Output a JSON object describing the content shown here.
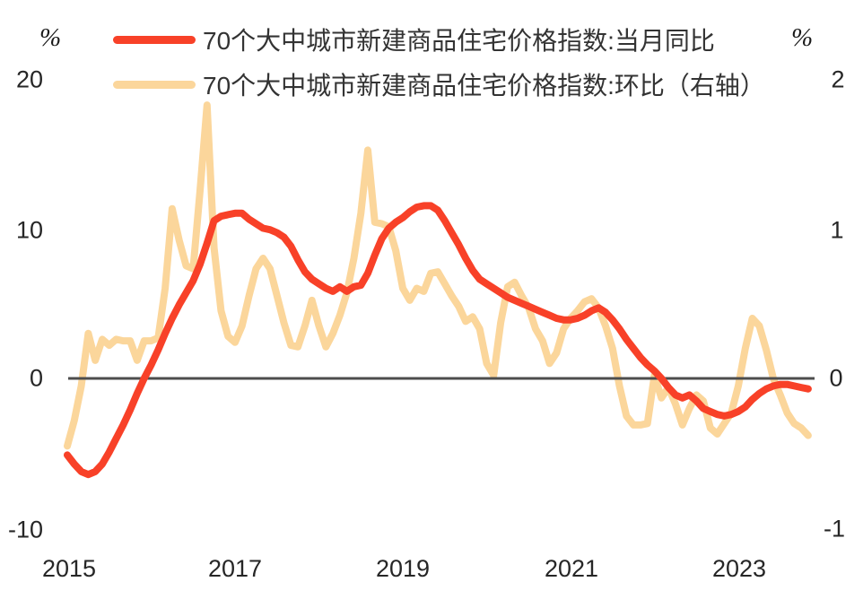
{
  "chart_data": {
    "type": "line",
    "title": "",
    "x_start": "2015-01",
    "x_end": "2023-11",
    "x_tick_labels": [
      "2015",
      "2017",
      "2019",
      "2021",
      "2023"
    ],
    "left_axis": {
      "unit": "%",
      "ticks": [
        "20",
        "10",
        "0",
        "-10"
      ],
      "range": [
        -10,
        20
      ]
    },
    "right_axis": {
      "unit": "%",
      "ticks": [
        "2",
        "1",
        "0",
        "-1"
      ],
      "range": [
        -1,
        2
      ]
    },
    "zero_line": true,
    "grid": "off",
    "legend_position": "top",
    "series": [
      {
        "name": "70个大中城市新建商品住宅价格指数:当月同比",
        "axis": "left",
        "color": "#F84128",
        "values": [
          -5.1,
          -5.7,
          -6.2,
          -6.4,
          -6.2,
          -5.7,
          -4.9,
          -4.0,
          -3.1,
          -2.1,
          -1.0,
          0.0,
          0.9,
          1.9,
          3.0,
          4.0,
          4.9,
          5.7,
          6.5,
          7.6,
          9.0,
          10.5,
          10.8,
          10.9,
          11.0,
          11.0,
          10.6,
          10.3,
          10.0,
          9.9,
          9.7,
          9.4,
          8.8,
          7.9,
          7.1,
          6.6,
          6.3,
          6.0,
          5.8,
          6.1,
          5.8,
          6.1,
          6.2,
          7.0,
          8.2,
          9.3,
          10.0,
          10.4,
          10.7,
          11.1,
          11.4,
          11.5,
          11.5,
          11.2,
          10.5,
          9.7,
          8.9,
          8.0,
          7.2,
          6.6,
          6.3,
          6.0,
          5.7,
          5.4,
          5.2,
          5.0,
          4.8,
          4.6,
          4.4,
          4.2,
          4.0,
          3.9,
          3.9,
          4.0,
          4.2,
          4.5,
          4.7,
          4.4,
          3.9,
          3.3,
          2.6,
          2.0,
          1.4,
          0.9,
          0.5,
          0.0,
          -0.6,
          -1.1,
          -1.3,
          -1.1,
          -1.5,
          -2.0,
          -2.2,
          -2.4,
          -2.5,
          -2.4,
          -2.2,
          -1.9,
          -1.4,
          -1.0,
          -0.7,
          -0.5,
          -0.4,
          -0.4,
          -0.5,
          -0.6,
          -0.7
        ]
      },
      {
        "name": "70个大中城市新建商品住宅价格指数:环比（右轴）",
        "axis": "right",
        "color": "#FBD69B",
        "values": [
          -0.45,
          -0.28,
          -0.05,
          0.3,
          0.12,
          0.26,
          0.22,
          0.26,
          0.25,
          0.25,
          0.12,
          0.25,
          0.25,
          0.27,
          0.6,
          1.13,
          0.92,
          0.75,
          0.73,
          1.25,
          1.82,
          0.87,
          0.45,
          0.28,
          0.24,
          0.35,
          0.55,
          0.73,
          0.8,
          0.73,
          0.55,
          0.37,
          0.22,
          0.21,
          0.35,
          0.52,
          0.35,
          0.21,
          0.3,
          0.42,
          0.57,
          0.8,
          1.1,
          1.52,
          1.04,
          1.03,
          1.01,
          0.85,
          0.6,
          0.52,
          0.6,
          0.58,
          0.7,
          0.71,
          0.63,
          0.55,
          0.48,
          0.38,
          0.41,
          0.33,
          0.1,
          0.02,
          0.37,
          0.61,
          0.64,
          0.55,
          0.47,
          0.33,
          0.25,
          0.1,
          0.17,
          0.33,
          0.4,
          0.45,
          0.51,
          0.53,
          0.47,
          0.35,
          0.2,
          -0.05,
          -0.25,
          -0.31,
          -0.31,
          -0.3,
          0.02,
          -0.13,
          -0.06,
          -0.17,
          -0.31,
          -0.2,
          -0.11,
          -0.15,
          -0.33,
          -0.37,
          -0.3,
          -0.23,
          -0.05,
          0.2,
          0.4,
          0.35,
          0.19,
          0.0,
          -0.11,
          -0.23,
          -0.3,
          -0.33,
          -0.38
        ]
      }
    ]
  },
  "colors": {
    "yoy_line": "#F84128",
    "mom_line": "#FBD69B",
    "zero_line": "#4D4D4D",
    "tick_text": "#262626"
  }
}
